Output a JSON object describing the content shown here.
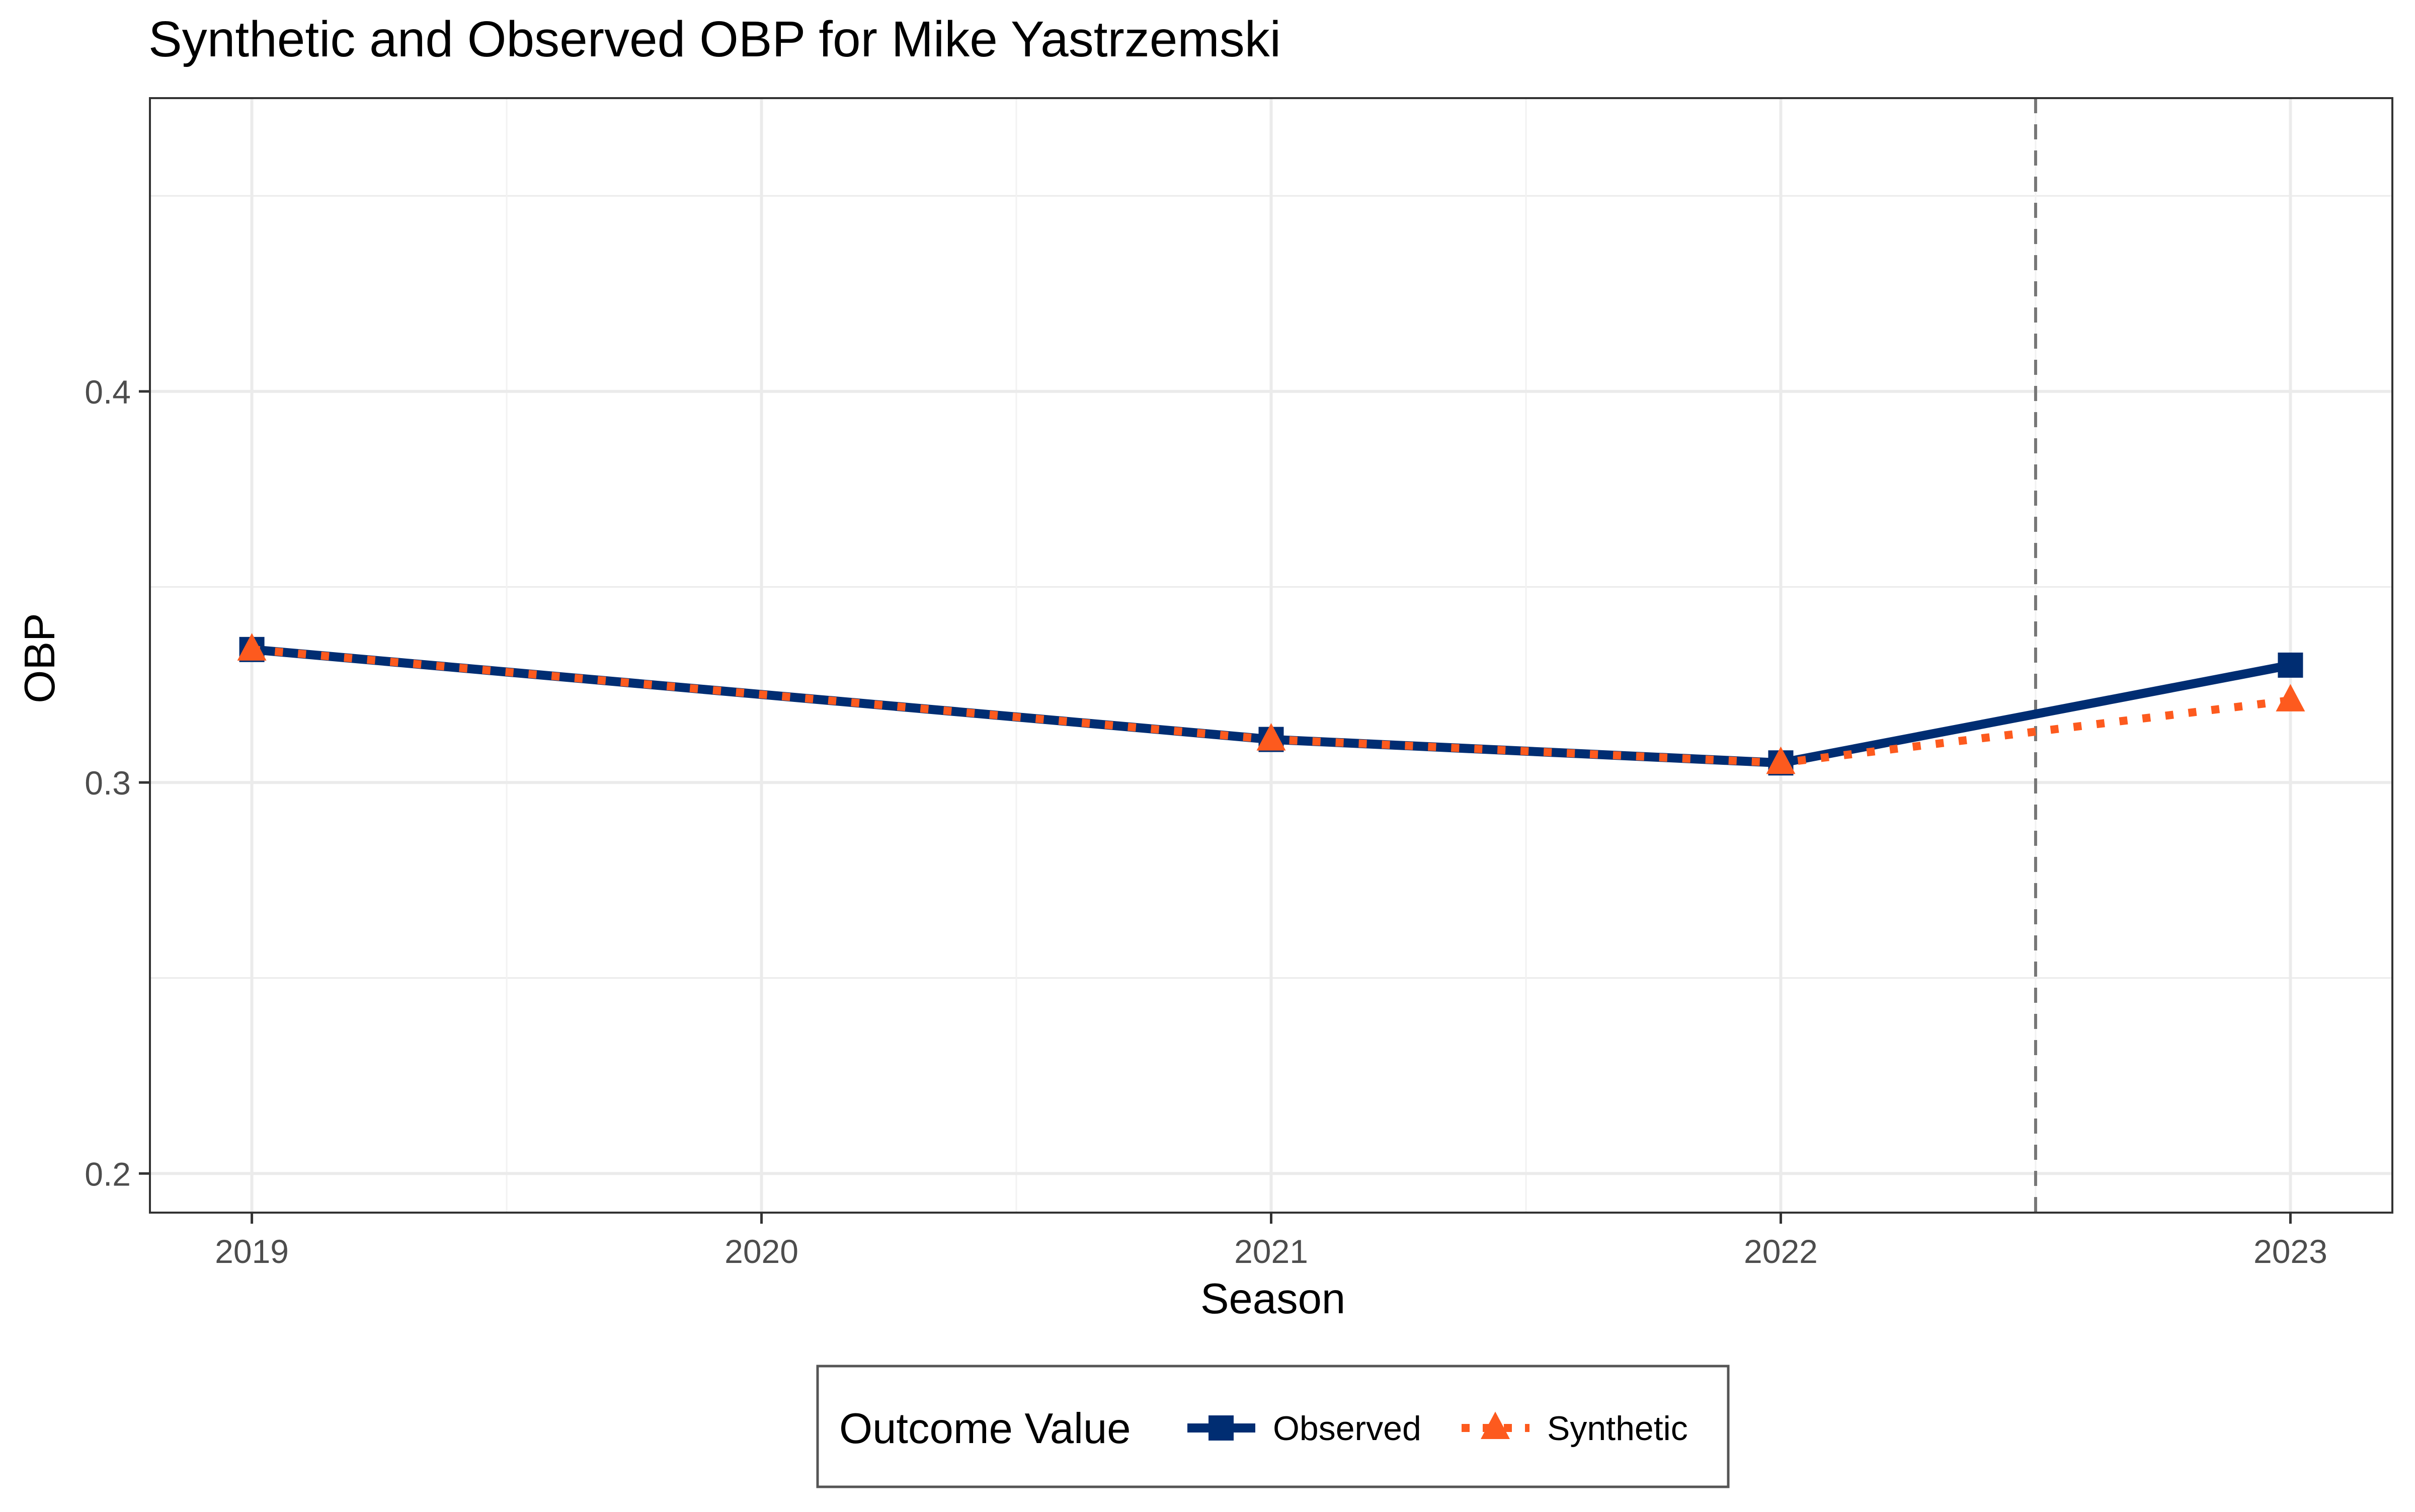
{
  "chart_data": {
    "type": "line",
    "title": "Synthetic and Observed OBP for Mike Yastrzemski",
    "xlabel": "Season",
    "ylabel": "OBP",
    "x": [
      2019,
      2020,
      2021,
      2022,
      2023
    ],
    "x_ticks": [
      "2019",
      "2020",
      "2021",
      "2022",
      "2023"
    ],
    "y_ticks": [
      "0.2",
      "0.3",
      "0.4"
    ],
    "xlim": [
      2018.8,
      2023.2
    ],
    "ylim": [
      0.19,
      0.475
    ],
    "grid": true,
    "legend_position": "bottom",
    "legend_title": "Outcome Value",
    "treatment_line_x": 2022.5,
    "series": [
      {
        "name": "Observed",
        "color": "#002D72",
        "line_style": "solid",
        "marker": "square",
        "points": [
          {
            "x": 2019,
            "y": 0.334
          },
          {
            "x": 2021,
            "y": 0.311
          },
          {
            "x": 2022,
            "y": 0.305
          },
          {
            "x": 2023,
            "y": 0.33
          }
        ]
      },
      {
        "name": "Synthetic",
        "color": "#FD5A1E",
        "line_style": "dotted",
        "marker": "triangle",
        "points": [
          {
            "x": 2019,
            "y": 0.334
          },
          {
            "x": 2021,
            "y": 0.311
          },
          {
            "x": 2022,
            "y": 0.305
          },
          {
            "x": 2023,
            "y": 0.321
          }
        ]
      }
    ]
  }
}
